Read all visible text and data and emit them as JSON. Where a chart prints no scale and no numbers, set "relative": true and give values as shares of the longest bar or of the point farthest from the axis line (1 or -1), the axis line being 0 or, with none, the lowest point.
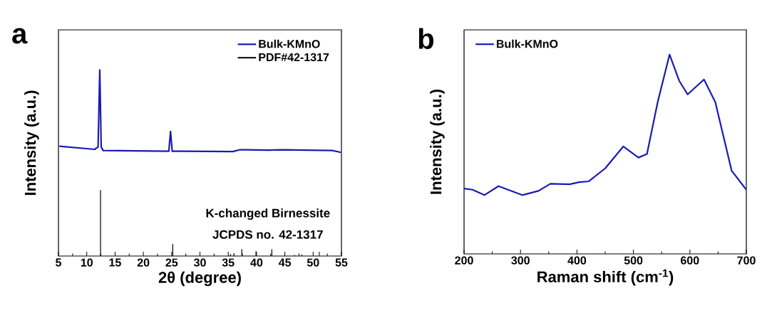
{
  "chart_data": [
    {
      "type": "line",
      "title": "a",
      "xlabel": "2θ (degree)",
      "ylabel": "Intensity (a.u.)",
      "relative": true,
      "legend": "top right",
      "xlim": [
        5,
        55
      ],
      "xticks": [
        5,
        10,
        15,
        20,
        25,
        30,
        35,
        40,
        45,
        50,
        55
      ],
      "annotations": [
        "K-changed Birnessite",
        "JCPDS no. 42-1317"
      ],
      "series": [
        {
          "name": "Bulk-KMnO",
          "color": "#1a1ab4",
          "x": [
            5.16,
            11.4,
            12.0,
            12.3,
            12.55,
            12.9,
            24.5,
            24.8,
            25.1,
            35.8,
            37.1,
            38.3,
            42.1,
            44.4,
            53.4,
            54.9
          ],
          "values": [
            0.59,
            0.573,
            0.586,
            1,
            0.586,
            0.567,
            0.563,
            0.669,
            0.563,
            0.561,
            0.571,
            0.571,
            0.569,
            0.571,
            0.567,
            0.557
          ]
        },
        {
          "name": "PDF#42-1317",
          "type": "bar",
          "color": "#000000",
          "x": [
            12.43,
            25.2,
            35.4,
            36.0,
            37.4,
            39.9,
            42.7,
            46.7,
            48.0,
            51.1
          ],
          "values": [
            0.354,
            0.064,
            0.01,
            0.015,
            0.036,
            0.026,
            0.036,
            0.006,
            0.008,
            0.023
          ]
        }
      ]
    },
    {
      "type": "line",
      "title": "b",
      "xlabel": "Raman shift (cm$^{-1}$)",
      "ylabel": "Intensity (a.u.)",
      "relative": true,
      "legend": "top left",
      "xlim": [
        200,
        700
      ],
      "xticks": [
        200,
        300,
        400,
        500,
        600,
        700
      ],
      "series": [
        {
          "name": "Bulk-KMnO",
          "color": "#1a1ab4",
          "x": [
            200,
            215,
            236,
            261,
            303,
            332,
            353,
            387,
            404,
            421,
            450,
            482,
            509,
            524,
            543,
            564,
            581,
            596,
            625,
            645,
            674,
            700
          ],
          "values": [
            0.328,
            0.322,
            0.295,
            0.34,
            0.295,
            0.316,
            0.352,
            0.349,
            0.36,
            0.364,
            0.429,
            0.539,
            0.483,
            0.501,
            0.762,
            1,
            0.869,
            0.8,
            0.875,
            0.762,
            0.417,
            0.322
          ]
        }
      ]
    }
  ]
}
